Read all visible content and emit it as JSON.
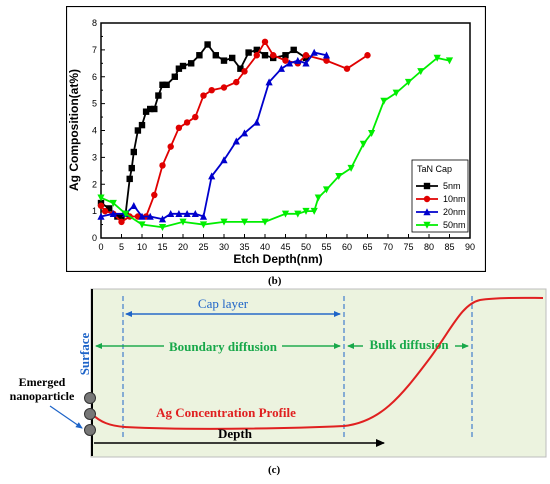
{
  "chart_data": {
    "type": "line",
    "title": "",
    "xlabel": "Etch Depth(nm)",
    "ylabel": "Ag Composition(at%)",
    "xlim": [
      0,
      90
    ],
    "ylim": [
      0,
      8
    ],
    "x_ticks": [
      "0",
      "5",
      "10",
      "15",
      "20",
      "25",
      "30",
      "35",
      "40",
      "45",
      "50",
      "55",
      "60",
      "65",
      "70",
      "75",
      "80",
      "85",
      "90"
    ],
    "y_ticks": [
      "0",
      "1",
      "2",
      "3",
      "4",
      "5",
      "6",
      "7",
      "8"
    ],
    "grid": false,
    "legend_title": "TaN Cap",
    "legend_position": "lower-right",
    "series": [
      {
        "name": "5nm",
        "color": "#000000",
        "marker": "square",
        "points": [
          [
            0,
            1.3
          ],
          [
            2,
            1.1
          ],
          [
            4,
            0.8
          ],
          [
            5,
            0.8
          ],
          [
            6,
            0.9
          ],
          [
            7,
            2.2
          ],
          [
            7.5,
            2.6
          ],
          [
            8,
            3.2
          ],
          [
            9,
            4.0
          ],
          [
            10,
            4.2
          ],
          [
            11,
            4.7
          ],
          [
            12,
            4.8
          ],
          [
            13,
            4.8
          ],
          [
            14,
            5.3
          ],
          [
            15,
            5.7
          ],
          [
            16,
            5.7
          ],
          [
            18,
            6.0
          ],
          [
            19,
            6.3
          ],
          [
            20,
            6.4
          ],
          [
            22,
            6.5
          ],
          [
            24,
            6.8
          ],
          [
            26,
            7.2
          ],
          [
            28,
            6.8
          ],
          [
            30,
            6.6
          ],
          [
            32,
            6.7
          ],
          [
            34,
            6.3
          ],
          [
            36,
            6.9
          ],
          [
            38,
            7.0
          ],
          [
            40,
            6.8
          ],
          [
            42,
            6.7
          ],
          [
            45,
            6.8
          ],
          [
            47,
            7.0
          ],
          [
            50,
            6.7
          ]
        ]
      },
      {
        "name": "10nm",
        "color": "#e00000",
        "marker": "circle",
        "points": [
          [
            0,
            1.2
          ],
          [
            1,
            1.0
          ],
          [
            3,
            0.9
          ],
          [
            5,
            0.6
          ],
          [
            7,
            0.8
          ],
          [
            9,
            0.8
          ],
          [
            11,
            0.8
          ],
          [
            13,
            1.6
          ],
          [
            15,
            2.7
          ],
          [
            17,
            3.4
          ],
          [
            19,
            4.1
          ],
          [
            21,
            4.3
          ],
          [
            23,
            4.5
          ],
          [
            25,
            5.3
          ],
          [
            27,
            5.5
          ],
          [
            30,
            5.6
          ],
          [
            33,
            5.8
          ],
          [
            35,
            6.2
          ],
          [
            38,
            6.8
          ],
          [
            40,
            7.3
          ],
          [
            42,
            6.8
          ],
          [
            45,
            6.6
          ],
          [
            48,
            6.5
          ],
          [
            50,
            6.8
          ],
          [
            55,
            6.6
          ],
          [
            60,
            6.3
          ],
          [
            65,
            6.8
          ]
        ]
      },
      {
        "name": "20nm",
        "color": "#0000cc",
        "marker": "triangle",
        "points": [
          [
            0,
            0.8
          ],
          [
            3,
            0.9
          ],
          [
            6,
            0.9
          ],
          [
            8,
            1.2
          ],
          [
            10,
            0.8
          ],
          [
            12,
            0.8
          ],
          [
            15,
            0.7
          ],
          [
            17,
            0.9
          ],
          [
            19,
            0.9
          ],
          [
            21,
            0.9
          ],
          [
            23,
            0.9
          ],
          [
            25,
            0.8
          ],
          [
            27,
            2.3
          ],
          [
            30,
            2.9
          ],
          [
            33,
            3.6
          ],
          [
            35,
            3.9
          ],
          [
            38,
            4.3
          ],
          [
            41,
            5.8
          ],
          [
            44,
            6.3
          ],
          [
            46,
            6.5
          ],
          [
            48,
            6.6
          ],
          [
            50,
            6.5
          ],
          [
            52,
            6.9
          ],
          [
            55,
            6.8
          ]
        ]
      },
      {
        "name": "50nm",
        "color": "#00ee00",
        "marker": "triangle-down",
        "points": [
          [
            0,
            1.5
          ],
          [
            3,
            1.3
          ],
          [
            6,
            0.9
          ],
          [
            10,
            0.5
          ],
          [
            15,
            0.4
          ],
          [
            20,
            0.6
          ],
          [
            25,
            0.5
          ],
          [
            30,
            0.6
          ],
          [
            35,
            0.6
          ],
          [
            40,
            0.6
          ],
          [
            45,
            0.9
          ],
          [
            48,
            0.9
          ],
          [
            50,
            1.0
          ],
          [
            52,
            1.0
          ],
          [
            53,
            1.5
          ],
          [
            55,
            1.8
          ],
          [
            58,
            2.3
          ],
          [
            61,
            2.6
          ],
          [
            64,
            3.5
          ],
          [
            66,
            3.9
          ],
          [
            69,
            5.1
          ],
          [
            72,
            5.4
          ],
          [
            75,
            5.8
          ],
          [
            78,
            6.2
          ],
          [
            82,
            6.7
          ],
          [
            85,
            6.6
          ]
        ]
      }
    ]
  },
  "captions": {
    "top": "(b)",
    "bottom": "(c)"
  },
  "diagram": {
    "cap_layer": "Cap layer",
    "boundary_diffusion": "Boundary diffusion",
    "bulk_diffusion": "Bulk diffusion",
    "surface": "Surface",
    "emerged_line1": "Emerged",
    "emerged_line2": "nanoparticle",
    "profile": "Ag Concentration Profile",
    "depth": "Depth"
  }
}
